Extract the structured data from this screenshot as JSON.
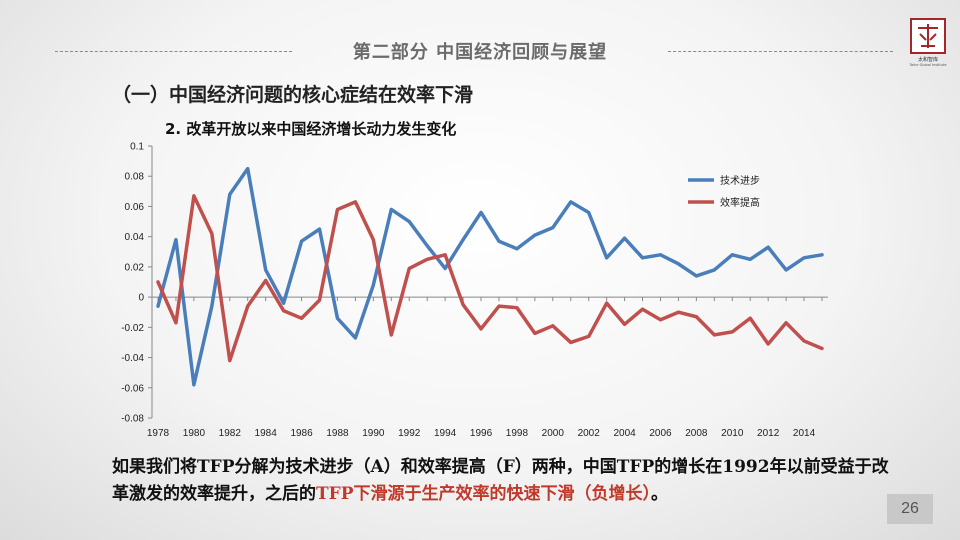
{
  "header": {
    "section_title": "第二部分  中国经济回顾与展望",
    "logo": {
      "name": "太和智库",
      "subtitle": "Taihe Global Institute",
      "brand_color": "#a4262c"
    }
  },
  "heading": "（一）中国经济问题的核心症结在效率下滑",
  "subheading": "2.  改革开放以来中国经济增长动力发生变化",
  "chart_data": {
    "type": "line",
    "title": "",
    "xlabel": "",
    "ylabel": "",
    "x": [
      1978,
      1979,
      1980,
      1981,
      1982,
      1983,
      1984,
      1985,
      1986,
      1987,
      1988,
      1989,
      1990,
      1991,
      1992,
      1993,
      1994,
      1995,
      1996,
      1997,
      1998,
      1999,
      2000,
      2001,
      2002,
      2003,
      2004,
      2005,
      2006,
      2007,
      2008,
      2009,
      2010,
      2011,
      2012,
      2013,
      2014,
      2015
    ],
    "x_ticks": [
      "1978",
      "1980",
      "1982",
      "1984",
      "1986",
      "1988",
      "1990",
      "1992",
      "1994",
      "1996",
      "1998",
      "2000",
      "2002",
      "2004",
      "2006",
      "2008",
      "2010",
      "2012",
      "2014"
    ],
    "y_ticks": [
      "0.1",
      "0.08",
      "0.06",
      "0.04",
      "0.02",
      "0",
      "-0.02",
      "-0.04",
      "-0.06",
      "-0.08"
    ],
    "ylim": [
      -0.08,
      0.1
    ],
    "grid": false,
    "legend_position": "top-right",
    "series": [
      {
        "name": "技术进步",
        "color": "#4a7ebb",
        "values": [
          -0.006,
          0.038,
          -0.058,
          -0.006,
          0.068,
          0.085,
          0.018,
          -0.004,
          0.037,
          0.045,
          -0.014,
          -0.027,
          0.008,
          0.058,
          0.05,
          0.034,
          0.019,
          0.038,
          0.056,
          0.037,
          0.032,
          0.041,
          0.046,
          0.063,
          0.056,
          0.026,
          0.039,
          0.026,
          0.028,
          0.022,
          0.014,
          0.018,
          0.028,
          0.025,
          0.033,
          0.018,
          0.026,
          0.028
        ]
      },
      {
        "name": "效率提高",
        "color": "#c0504d",
        "values": [
          0.01,
          -0.017,
          0.067,
          0.042,
          -0.042,
          -0.006,
          0.011,
          -0.009,
          -0.014,
          -0.002,
          0.058,
          0.063,
          0.038,
          -0.025,
          0.019,
          0.025,
          0.028,
          -0.005,
          -0.021,
          -0.006,
          -0.007,
          -0.024,
          -0.019,
          -0.03,
          -0.026,
          -0.004,
          -0.018,
          -0.008,
          -0.015,
          -0.01,
          -0.013,
          -0.025,
          -0.023,
          -0.014,
          -0.031,
          -0.017,
          -0.029,
          -0.034
        ]
      }
    ]
  },
  "body": {
    "part1": "如果我们将TFP分解为技术进步（A）和效率提高（F）两种，中国TFP的增长在1992年以前受益于改革激发的效率提升，之后的",
    "part2_red": "TFP下滑源于生产效率的快速下滑（负增长）",
    "part3": "。"
  },
  "page_number": "26"
}
